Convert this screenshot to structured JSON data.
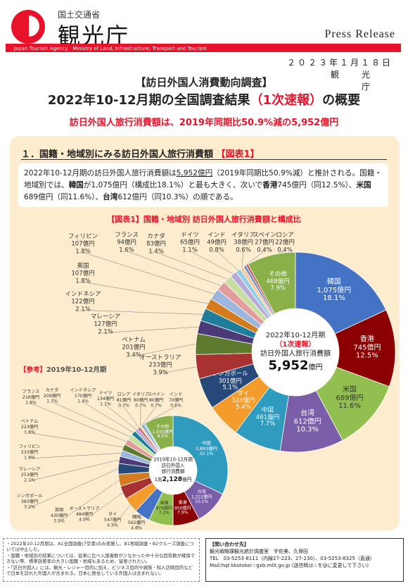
{
  "header": {
    "ministry": "国土交通省",
    "agency_jp": "観光庁",
    "agency_en": "Japan Tourism Agency　Ministry of Land, Infrastructure, Transport and Tourism",
    "press": "Press Release",
    "date": "２０２３年１月１８日",
    "issuer": "観光庁"
  },
  "doc": {
    "subtitle": "【訪日外国人消費動向調査】",
    "title_pre": "2022年10-12月期の全国調査結果",
    "title_red": "（1次速報）",
    "title_post": "の概要",
    "headline": "訪日外国人旅行消費額は、2019年同期比50.9%減の5,952億円"
  },
  "section": {
    "heading": "１．国籍・地域別にみる訪日外国人旅行消費額",
    "heading_tag": "【図表1】",
    "text1": "2022年10-12月期の訪日外国人旅行消費額は",
    "text1_ul": "5,952億円",
    "text2": "（2019年同期比50.9%減）と推計される。国籍・地域別では、",
    "bold1": "韓国",
    "text3": "が1,075億円（構成比18.1%）と最も大きく、次いで",
    "bold2": "香港",
    "text4": "745億円（同12.5%）、",
    "bold3": "米国",
    "text5": "689億円（同11.6%）、",
    "bold4": "台湾",
    "text6": "612億円（同10.3%）の順である。"
  },
  "figure_title": "【図表1】国籍・地域別 訪日外国人旅行消費額と構成比",
  "ref_title_tag": "【参考】",
  "ref_title": "2019年10-12月期",
  "chart_data": [
    {
      "type": "pie",
      "center_lines": [
        "2022年10-12月期",
        "（1次速報）",
        "訪日外国人旅行消費額"
      ],
      "center_value": "5,952",
      "center_unit": "億円",
      "unit": "億円",
      "series": [
        {
          "name": "韓国",
          "value": 1075,
          "pct": "18.1%",
          "color": "#4472c4"
        },
        {
          "name": "香港",
          "value": 745,
          "pct": "12.5%",
          "color": "#8b0000"
        },
        {
          "name": "米国",
          "value": 689,
          "pct": "11.6%",
          "color": "#92c050"
        },
        {
          "name": "台湾",
          "value": 612,
          "pct": "10.3%",
          "color": "#7a5ea8"
        },
        {
          "name": "中国",
          "value": 461,
          "pct": "7.7%",
          "color": "#2f9bbf"
        },
        {
          "name": "タイ",
          "value": 324,
          "pct": "5.4%",
          "color": "#f39b2b"
        },
        {
          "name": "シンガポール",
          "value": 301,
          "pct": "5.1%",
          "color": "#27497a"
        },
        {
          "name": "オーストラリア",
          "value": 233,
          "pct": "3.9%",
          "color": "#a83232"
        },
        {
          "name": "ベトナム",
          "value": 201,
          "pct": "3.4%",
          "color": "#5e7a2e"
        },
        {
          "name": "マレーシア",
          "value": 127,
          "pct": "2.1%",
          "color": "#4a3a78"
        },
        {
          "name": "インドネシア",
          "value": 122,
          "pct": "2.1%",
          "color": "#1f7d99"
        },
        {
          "name": "英国",
          "value": 107,
          "pct": "1.8%",
          "color": "#d27b1f"
        },
        {
          "name": "フィリピン",
          "value": 107,
          "pct": "1.8%",
          "color": "#9db6de"
        },
        {
          "name": "フランス",
          "value": 94,
          "pct": "1.6%",
          "color": "#e39c9c"
        },
        {
          "name": "カナダ",
          "value": 83,
          "value_label": "83",
          "pct": "1.4%",
          "color": "#c6dea0"
        },
        {
          "name": "ドイツ",
          "value": 65,
          "pct": "1.1%",
          "color": "#b9a9d6"
        },
        {
          "name": "インド",
          "value": 49,
          "pct": "0.8%",
          "color": "#8fd0e4"
        },
        {
          "name": "イタリア",
          "value": 38,
          "pct": "0.6%",
          "color": "#f8c99a"
        },
        {
          "name": "スペイン",
          "value": 27,
          "pct": "0.4%",
          "color": "#6f8fc8"
        },
        {
          "name": "ロシア",
          "value": 22,
          "pct": "0.4%",
          "color": "#c35252"
        },
        {
          "name": "その他",
          "value": 468,
          "pct": "7.9%",
          "color": "#8ab04a"
        }
      ]
    },
    {
      "type": "pie",
      "center_lines": [
        "2019年10-12月期",
        "訪日外国人",
        "旅行消費額"
      ],
      "center_prefix": "1兆",
      "center_value": "2,128",
      "center_unit": "億円",
      "unit": "億円",
      "series": [
        {
          "name": "中国",
          "value": 3893,
          "pct": "32.1%",
          "color": "#2f9bbf"
        },
        {
          "name": "台湾",
          "value": 1222,
          "pct": "10.1%",
          "color": "#7a5ea8"
        },
        {
          "name": "香港",
          "value": 956,
          "pct": "7.9%",
          "color": "#8b0000"
        },
        {
          "name": "米国",
          "value": 879,
          "pct": "7.2%",
          "color": "#92c050"
        },
        {
          "name": "韓国",
          "value": 562,
          "pct": "4.6%",
          "color": "#4472c4"
        },
        {
          "name": "タイ",
          "value": 547,
          "pct": "4.5%",
          "color": "#f39b2b"
        },
        {
          "name": "オーストラリア",
          "value": 484,
          "pct": "4.0%",
          "color": "#a83232"
        },
        {
          "name": "英国",
          "value": 430,
          "pct": "3.5%",
          "color": "#d27b1f"
        },
        {
          "name": "シンガポール",
          "value": 383,
          "pct": "3.2%",
          "color": "#27497a"
        },
        {
          "name": "マレーシア",
          "value": 253,
          "pct": "2.1%",
          "color": "#4a3a78"
        },
        {
          "name": "フィリピン",
          "value": 233,
          "pct": "1.9%",
          "color": "#9db6de"
        },
        {
          "name": "ベトナム",
          "value": 223,
          "pct": "1.8%",
          "color": "#5e7a2e"
        },
        {
          "name": "フランス",
          "value": 216,
          "pct": "1.8%",
          "color": "#e39c9c"
        },
        {
          "name": "カナダ",
          "value": 209,
          "pct": "1.7%",
          "color": "#c6dea0"
        },
        {
          "name": "インドネシア",
          "value": 170,
          "pct": "1.4%",
          "color": "#1f7d99"
        },
        {
          "name": "ドイツ",
          "value": 134,
          "pct": "1.1%",
          "color": "#b9a9d6"
        },
        {
          "name": "ロシア",
          "value": 81,
          "pct": "0.7%",
          "color": "#c35252"
        },
        {
          "name": "イタリア",
          "value": 80,
          "pct": "0.7%",
          "color": "#f8c99a"
        },
        {
          "name": "スペイン",
          "value": 80,
          "pct": "0.7%",
          "color": "#6f8fc8"
        },
        {
          "name": "インド",
          "value": 70,
          "pct": "0.6%",
          "color": "#8fd0e4"
        },
        {
          "name": "その他",
          "value": 1035,
          "pct": "8.5%",
          "color": "#8ab04a"
        }
      ]
    }
  ],
  "notes": [
    "・2022年10-12月期は、A1全国調査(7空港)のみ実施し、B1地域調査・B2クルーズ調査については中止した。",
    "・国籍・地域別の結果については、従来に比べ入国者数が少なかった中十分な回答数が確保できない等、標準誤差率の大きい国籍・地域もあるため、留意されたい。",
    "・「訪日外国人」には、観光・レジャー目的に加え、ビジネス目的や親族・知人訪問目的などで日本を訪れた外国人が含まれる。日本に居住している外国人は含まれない。"
  ],
  "contact": {
    "heading": "【問い合わせ先】",
    "dept": "観光戦略課観光統計調査室　宇佐美、久保田",
    "tel": "TEL　03-5253-8111（内線27-223、27-230）、03-5253-8325（直通）",
    "mail": "Mail:hqt-kkotokei☆gxb.mlit.go.jp (送信時は☆を@に変更して下さい)"
  }
}
